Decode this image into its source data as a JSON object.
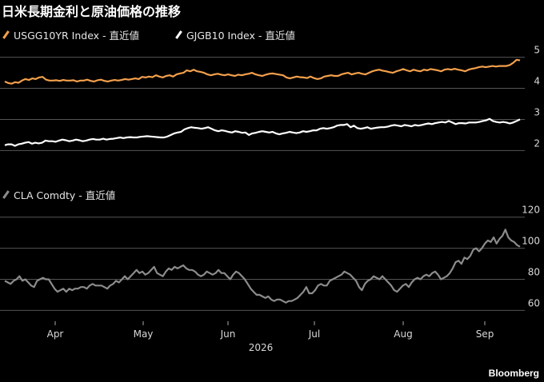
{
  "title": "日米長期金利と原油価格の推移",
  "brand": "Bloomberg",
  "colors": {
    "us": "#f4a04c",
    "jp": "#ffffff",
    "oil": "#8c8c8c",
    "grid": "#555555"
  },
  "chart_data": [
    {
      "type": "line",
      "legend": [
        {
          "name": "USGG10YR Index - 直近値",
          "color": "#f4a04c"
        },
        {
          "name": "GJGB10 Index - 直近値",
          "color": "#ffffff"
        }
      ],
      "x": {
        "ticks": [
          "Apr",
          "May",
          "Jun",
          "Jul",
          "Aug",
          "Sep"
        ],
        "year_label": "2026"
      },
      "ylim": [
        1.7,
        5.3
      ],
      "yticks": [
        2,
        3,
        4,
        5
      ],
      "series": [
        {
          "name": "USGG10YR Index - 直近値",
          "color": "#f4a04c",
          "values": [
            4.22,
            4.17,
            4.15,
            4.2,
            4.18,
            4.25,
            4.3,
            4.27,
            4.32,
            4.3,
            4.35,
            4.37,
            4.28,
            4.25,
            4.25,
            4.26,
            4.24,
            4.27,
            4.25,
            4.25,
            4.26,
            4.22,
            4.25,
            4.25,
            4.28,
            4.24,
            4.22,
            4.26,
            4.28,
            4.24,
            4.22,
            4.25,
            4.27,
            4.25,
            4.27,
            4.3,
            4.28,
            4.3,
            4.32,
            4.3,
            4.37,
            4.35,
            4.38,
            4.36,
            4.42,
            4.38,
            4.35,
            4.4,
            4.42,
            4.38,
            4.45,
            4.48,
            4.5,
            4.58,
            4.55,
            4.6,
            4.55,
            4.53,
            4.5,
            4.45,
            4.42,
            4.45,
            4.47,
            4.44,
            4.42,
            4.45,
            4.42,
            4.4,
            4.44,
            4.42,
            4.45,
            4.47,
            4.5,
            4.45,
            4.42,
            4.4,
            4.44,
            4.47,
            4.48,
            4.46,
            4.44,
            4.42,
            4.35,
            4.32,
            4.35,
            4.38,
            4.36,
            4.35,
            4.33,
            4.38,
            4.33,
            4.3,
            4.32,
            4.38,
            4.4,
            4.42,
            4.4,
            4.4,
            4.45,
            4.48,
            4.5,
            4.45,
            4.48,
            4.5,
            4.47,
            4.45,
            4.5,
            4.55,
            4.58,
            4.6,
            4.57,
            4.55,
            4.52,
            4.5,
            4.55,
            4.58,
            4.62,
            4.58,
            4.55,
            4.6,
            4.57,
            4.55,
            4.6,
            4.58,
            4.62,
            4.6,
            4.58,
            4.55,
            4.6,
            4.62,
            4.6,
            4.63,
            4.6,
            4.58,
            4.55,
            4.6,
            4.63,
            4.65,
            4.68,
            4.7,
            4.68,
            4.7,
            4.72,
            4.7,
            4.72,
            4.72,
            4.72,
            4.75,
            4.82,
            4.92,
            4.9
          ]
        },
        {
          "name": "GJGB10 Index - 直近値",
          "color": "#ffffff",
          "values": [
            2.17,
            2.2,
            2.2,
            2.15,
            2.2,
            2.22,
            2.25,
            2.27,
            2.22,
            2.25,
            2.23,
            2.25,
            2.32,
            2.3,
            2.3,
            2.28,
            2.32,
            2.35,
            2.33,
            2.3,
            2.32,
            2.35,
            2.33,
            2.3,
            2.32,
            2.35,
            2.37,
            2.35,
            2.35,
            2.38,
            2.35,
            2.37,
            2.38,
            2.4,
            2.42,
            2.4,
            2.42,
            2.43,
            2.42,
            2.42,
            2.44,
            2.45,
            2.46,
            2.45,
            2.44,
            2.43,
            2.42,
            2.42,
            2.45,
            2.5,
            2.55,
            2.58,
            2.6,
            2.68,
            2.72,
            2.75,
            2.73,
            2.72,
            2.7,
            2.72,
            2.75,
            2.7,
            2.65,
            2.62,
            2.65,
            2.63,
            2.6,
            2.58,
            2.62,
            2.6,
            2.57,
            2.58,
            2.5,
            2.55,
            2.57,
            2.6,
            2.62,
            2.6,
            2.58,
            2.6,
            2.55,
            2.52,
            2.55,
            2.57,
            2.6,
            2.58,
            2.56,
            2.58,
            2.62,
            2.6,
            2.62,
            2.65,
            2.65,
            2.7,
            2.72,
            2.7,
            2.72,
            2.75,
            2.8,
            2.82,
            2.82,
            2.85,
            2.75,
            2.8,
            2.72,
            2.7,
            2.72,
            2.75,
            2.7,
            2.72,
            2.74,
            2.75,
            2.75,
            2.77,
            2.8,
            2.82,
            2.8,
            2.78,
            2.82,
            2.8,
            2.78,
            2.82,
            2.8,
            2.82,
            2.85,
            2.87,
            2.85,
            2.88,
            2.9,
            2.92,
            2.9,
            2.95,
            2.9,
            2.85,
            2.88,
            2.88,
            2.87,
            2.9,
            2.9,
            2.9,
            2.92,
            2.95,
            2.97,
            3.02,
            2.95,
            2.92,
            2.9,
            2.92,
            2.9,
            2.87,
            2.9,
            2.95,
            3.0
          ]
        }
      ]
    },
    {
      "type": "line",
      "legend": [
        {
          "name": "CLA Comdty - 直近値",
          "color": "#8c8c8c"
        }
      ],
      "x": {
        "ticks": [
          "Apr",
          "May",
          "Jun",
          "Jul",
          "Aug",
          "Sep"
        ],
        "year_label": "2026"
      },
      "ylim": [
        53,
        125
      ],
      "yticks": [
        60,
        80,
        100,
        120
      ],
      "series": [
        {
          "name": "CLA Comdty - 直近値",
          "color": "#8c8c8c",
          "values": [
            79,
            78,
            77,
            79,
            80,
            82,
            79,
            80,
            78,
            76,
            75,
            79,
            80,
            81,
            80,
            80,
            77,
            74,
            72,
            73,
            74,
            72,
            74,
            73,
            74,
            74,
            75,
            75,
            74,
            76,
            77,
            76,
            76,
            76,
            75,
            74,
            76,
            77,
            79,
            78,
            80,
            82,
            80,
            82,
            84,
            86,
            84,
            85,
            83,
            84,
            86,
            88,
            84,
            83,
            82,
            85,
            87,
            86,
            88,
            87,
            88,
            89,
            87,
            86,
            86,
            85,
            83,
            82,
            83,
            85,
            84,
            83,
            84,
            86,
            84,
            84,
            82,
            80,
            83,
            85,
            84,
            82,
            80,
            77,
            74,
            72,
            70,
            70,
            69,
            68,
            69,
            67,
            66,
            67,
            67,
            66,
            65,
            66,
            66,
            67,
            68,
            70,
            72,
            75,
            71,
            71,
            73,
            76,
            77,
            76,
            76,
            79,
            80,
            81,
            82,
            83,
            85,
            84,
            83,
            81,
            79,
            75,
            73,
            77,
            79,
            80,
            82,
            81,
            80,
            82,
            80,
            78,
            76,
            73,
            72,
            74,
            76,
            77,
            75,
            78,
            80,
            81,
            80,
            82,
            83,
            82,
            84,
            85,
            83,
            80,
            81,
            82,
            84,
            87,
            91,
            92,
            90,
            94,
            93,
            95,
            99,
            100,
            98,
            100,
            103,
            105,
            104,
            107,
            103,
            106,
            108,
            112,
            107,
            105,
            104,
            102,
            101
          ]
        }
      ]
    }
  ]
}
